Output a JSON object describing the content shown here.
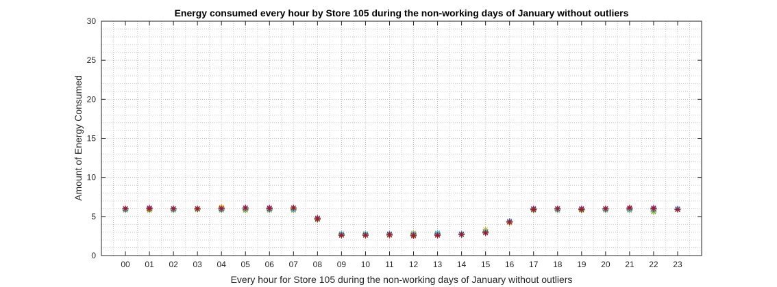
{
  "chart_data": {
    "type": "scatter",
    "title": "Energy consumed every hour by Store 105 during the non-working days of January without outliers",
    "xlabel": "Every hour for Store 105 during the non-working days of January without outliers",
    "ylabel": "Amount of Energy Consumed",
    "categories": [
      "00",
      "01",
      "02",
      "03",
      "04",
      "05",
      "06",
      "07",
      "08",
      "09",
      "10",
      "11",
      "12",
      "13",
      "14",
      "15",
      "16",
      "17",
      "18",
      "19",
      "20",
      "21",
      "22",
      "23"
    ],
    "ylim": [
      0,
      30
    ],
    "yticks": [
      0,
      5,
      10,
      15,
      20,
      25,
      30
    ],
    "grid": true,
    "minor_grid": true,
    "marker": "*",
    "series": [
      {
        "color": "#0072BD",
        "values": [
          5.9,
          6.0,
          5.9,
          6.0,
          5.9,
          5.9,
          5.9,
          5.9,
          4.7,
          2.7,
          2.7,
          2.7,
          2.6,
          2.8,
          2.7,
          3.0,
          4.3,
          5.9,
          5.9,
          5.9,
          5.9,
          5.9,
          5.9,
          5.9
        ]
      },
      {
        "color": "#D95319",
        "values": [
          6.0,
          6.1,
          6.0,
          6.0,
          6.1,
          6.1,
          6.1,
          6.1,
          4.8,
          2.6,
          2.6,
          2.6,
          2.5,
          2.6,
          2.7,
          3.1,
          4.4,
          6.0,
          6.0,
          6.0,
          6.0,
          6.1,
          6.0,
          5.9
        ]
      },
      {
        "color": "#EDB120",
        "values": [
          5.9,
          5.9,
          5.9,
          5.9,
          6.2,
          5.9,
          5.9,
          6.0,
          4.6,
          2.8,
          2.8,
          2.8,
          2.9,
          2.7,
          2.8,
          3.3,
          4.2,
          5.9,
          5.9,
          5.8,
          5.9,
          5.9,
          5.8,
          5.9
        ]
      },
      {
        "color": "#7E2F8E",
        "values": [
          6.0,
          6.1,
          6.0,
          6.0,
          6.0,
          6.1,
          6.1,
          6.1,
          4.8,
          2.7,
          2.7,
          2.7,
          2.6,
          2.7,
          2.7,
          3.0,
          4.4,
          6.0,
          6.0,
          6.0,
          6.0,
          6.0,
          6.1,
          6.0
        ]
      },
      {
        "color": "#77AC30",
        "values": [
          5.8,
          5.8,
          5.8,
          5.9,
          5.8,
          5.8,
          5.8,
          5.8,
          4.6,
          2.7,
          2.7,
          2.7,
          2.7,
          2.8,
          2.7,
          3.0,
          4.3,
          5.8,
          5.8,
          5.8,
          5.8,
          5.8,
          5.6,
          5.9
        ]
      },
      {
        "color": "#4DBEEE",
        "values": [
          5.9,
          6.0,
          5.9,
          6.0,
          5.9,
          6.0,
          5.9,
          5.9,
          4.7,
          2.8,
          2.8,
          2.8,
          2.8,
          2.9,
          2.8,
          3.1,
          4.4,
          5.9,
          5.9,
          5.9,
          5.9,
          5.9,
          5.9,
          6.0
        ]
      },
      {
        "color": "#A2142F",
        "values": [
          6.0,
          6.0,
          6.0,
          6.0,
          6.0,
          6.1,
          6.0,
          6.1,
          4.7,
          2.6,
          2.6,
          2.7,
          2.6,
          2.6,
          2.7,
          2.9,
          4.3,
          5.9,
          6.0,
          5.9,
          6.0,
          6.1,
          6.0,
          5.9
        ]
      }
    ]
  }
}
